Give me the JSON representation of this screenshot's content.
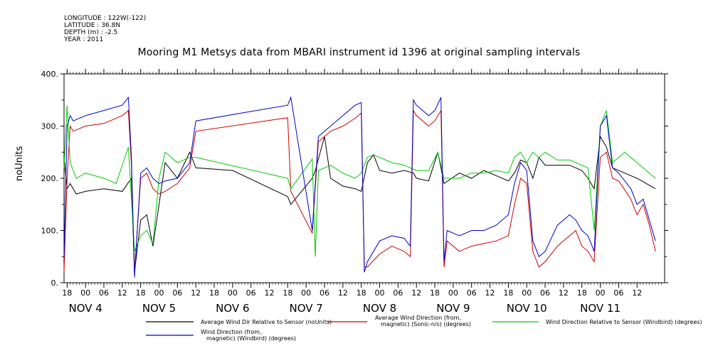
{
  "meta": {
    "longitude": "LONGITUDE : 122W(-122)",
    "latitude": "LATITUDE : 36.8N",
    "depth": "DEPTH (m) : -2.5",
    "year": "YEAR : 2011"
  },
  "chart_data": {
    "type": "line",
    "title": "Mooring M1 Metsys data from MBARI instrument id 1396 at original sampling intervals",
    "ylabel": "noUnits",
    "ylim": [
      0,
      400
    ],
    "yticks": [
      "0.",
      "100.",
      "200.",
      "300.",
      "400."
    ],
    "xlim_hours": [
      -7,
      189
    ],
    "hour_ticks": [
      {
        "h": -6,
        "label": "18"
      },
      {
        "h": 0,
        "label": "00"
      },
      {
        "h": 6,
        "label": "06"
      },
      {
        "h": 12,
        "label": "12"
      },
      {
        "h": 18,
        "label": "18"
      },
      {
        "h": 24,
        "label": "00"
      },
      {
        "h": 30,
        "label": "06"
      },
      {
        "h": 36,
        "label": "12"
      },
      {
        "h": 42,
        "label": "18"
      },
      {
        "h": 48,
        "label": "00"
      },
      {
        "h": 54,
        "label": "06"
      },
      {
        "h": 60,
        "label": "12"
      },
      {
        "h": 66,
        "label": "18"
      },
      {
        "h": 72,
        "label": "00"
      },
      {
        "h": 78,
        "label": "06"
      },
      {
        "h": 84,
        "label": "12"
      },
      {
        "h": 90,
        "label": "18"
      },
      {
        "h": 96,
        "label": "00"
      },
      {
        "h": 102,
        "label": "06"
      },
      {
        "h": 108,
        "label": "12"
      },
      {
        "h": 114,
        "label": "18"
      },
      {
        "h": 120,
        "label": "00"
      },
      {
        "h": 126,
        "label": "06"
      },
      {
        "h": 132,
        "label": "12"
      },
      {
        "h": 138,
        "label": "18"
      },
      {
        "h": 144,
        "label": "00"
      },
      {
        "h": 150,
        "label": "06"
      },
      {
        "h": 156,
        "label": "12"
      },
      {
        "h": 162,
        "label": "18"
      },
      {
        "h": 168,
        "label": "00"
      },
      {
        "h": 174,
        "label": "06"
      },
      {
        "h": 180,
        "label": "12"
      }
    ],
    "day_labels": [
      {
        "h": 0,
        "label": "NOV  4"
      },
      {
        "h": 24,
        "label": "NOV  5"
      },
      {
        "h": 48,
        "label": "NOV  6"
      },
      {
        "h": 72,
        "label": "NOV  7"
      },
      {
        "h": 96,
        "label": "NOV  8"
      },
      {
        "h": 120,
        "label": "NOV  9"
      },
      {
        "h": 144,
        "label": "NOV 10"
      },
      {
        "h": 168,
        "label": "NOV 11"
      }
    ],
    "series": [
      {
        "name": "Average Wind Dir Relative to Sensor (noUnits)",
        "color": "#000000",
        "points": [
          [
            -7,
            240
          ],
          [
            -6,
            180
          ],
          [
            -5,
            190
          ],
          [
            -3,
            170
          ],
          [
            0,
            175
          ],
          [
            6,
            180
          ],
          [
            12,
            175
          ],
          [
            15,
            200
          ],
          [
            16,
            20
          ],
          [
            18,
            120
          ],
          [
            20,
            130
          ],
          [
            22,
            70
          ],
          [
            24,
            150
          ],
          [
            26,
            230
          ],
          [
            30,
            200
          ],
          [
            34,
            250
          ],
          [
            36,
            220
          ],
          [
            48,
            215
          ],
          [
            66,
            165
          ],
          [
            67,
            150
          ],
          [
            74,
            200
          ],
          [
            75,
            215
          ],
          [
            78,
            280
          ],
          [
            80,
            200
          ],
          [
            84,
            185
          ],
          [
            88,
            180
          ],
          [
            90,
            175
          ],
          [
            92,
            230
          ],
          [
            94,
            245
          ],
          [
            96,
            215
          ],
          [
            100,
            210
          ],
          [
            104,
            215
          ],
          [
            107,
            210
          ],
          [
            108,
            200
          ],
          [
            112,
            195
          ],
          [
            115,
            250
          ],
          [
            117,
            190
          ],
          [
            122,
            210
          ],
          [
            126,
            200
          ],
          [
            130,
            215
          ],
          [
            134,
            205
          ],
          [
            138,
            195
          ],
          [
            140,
            210
          ],
          [
            142,
            235
          ],
          [
            144,
            230
          ],
          [
            146,
            200
          ],
          [
            148,
            240
          ],
          [
            150,
            225
          ],
          [
            154,
            225
          ],
          [
            158,
            225
          ],
          [
            162,
            215
          ],
          [
            164,
            200
          ],
          [
            166,
            180
          ],
          [
            168,
            280
          ],
          [
            170,
            260
          ],
          [
            172,
            220
          ],
          [
            176,
            210
          ],
          [
            180,
            200
          ],
          [
            186,
            180
          ]
        ]
      },
      {
        "name": "Average Wind Direction (from, magnetic) (Sonic-n/s) (degrees)",
        "color": "#cc0000",
        "points": [
          [
            -7,
            20
          ],
          [
            -6,
            200
          ],
          [
            -5,
            300
          ],
          [
            -4,
            290
          ],
          [
            0,
            300
          ],
          [
            6,
            305
          ],
          [
            12,
            320
          ],
          [
            14,
            330
          ],
          [
            15,
            225
          ],
          [
            16,
            20
          ],
          [
            18,
            200
          ],
          [
            20,
            210
          ],
          [
            22,
            180
          ],
          [
            24,
            170
          ],
          [
            26,
            175
          ],
          [
            30,
            190
          ],
          [
            34,
            220
          ],
          [
            36,
            290
          ],
          [
            66,
            316
          ],
          [
            67,
            175
          ],
          [
            74,
            95
          ],
          [
            76,
            270
          ],
          [
            80,
            290
          ],
          [
            84,
            300
          ],
          [
            88,
            315
          ],
          [
            90,
            325
          ],
          [
            91,
            30
          ],
          [
            92,
            30
          ],
          [
            96,
            55
          ],
          [
            100,
            70
          ],
          [
            104,
            60
          ],
          [
            106,
            50
          ],
          [
            107,
            330
          ],
          [
            108,
            320
          ],
          [
            112,
            300
          ],
          [
            114,
            310
          ],
          [
            116,
            330
          ],
          [
            117,
            30
          ],
          [
            118,
            80
          ],
          [
            122,
            60
          ],
          [
            126,
            70
          ],
          [
            130,
            75
          ],
          [
            134,
            80
          ],
          [
            138,
            90
          ],
          [
            140,
            150
          ],
          [
            142,
            200
          ],
          [
            144,
            190
          ],
          [
            146,
            60
          ],
          [
            148,
            30
          ],
          [
            150,
            40
          ],
          [
            154,
            70
          ],
          [
            158,
            90
          ],
          [
            160,
            100
          ],
          [
            162,
            70
          ],
          [
            164,
            60
          ],
          [
            166,
            40
          ],
          [
            168,
            240
          ],
          [
            170,
            250
          ],
          [
            172,
            200
          ],
          [
            174,
            195
          ],
          [
            178,
            160
          ],
          [
            180,
            130
          ],
          [
            182,
            150
          ],
          [
            184,
            110
          ],
          [
            186,
            60
          ]
        ]
      },
      {
        "name": "Wind Direction Relative to Sensor (Windbird) (degrees)",
        "color": "#00cc00",
        "points": [
          [
            -7,
            220
          ],
          [
            -6,
            340
          ],
          [
            -5,
            230
          ],
          [
            -3,
            200
          ],
          [
            0,
            210
          ],
          [
            6,
            200
          ],
          [
            10,
            190
          ],
          [
            14,
            260
          ],
          [
            16,
            60
          ],
          [
            18,
            90
          ],
          [
            20,
            100
          ],
          [
            22,
            75
          ],
          [
            24,
            200
          ],
          [
            26,
            250
          ],
          [
            30,
            230
          ],
          [
            34,
            240
          ],
          [
            36,
            240
          ],
          [
            66,
            200
          ],
          [
            67,
            180
          ],
          [
            74,
            237
          ],
          [
            75,
            50
          ],
          [
            76,
            215
          ],
          [
            80,
            225
          ],
          [
            84,
            210
          ],
          [
            88,
            200
          ],
          [
            90,
            210
          ],
          [
            92,
            240
          ],
          [
            94,
            245
          ],
          [
            96,
            240
          ],
          [
            100,
            230
          ],
          [
            104,
            225
          ],
          [
            108,
            215
          ],
          [
            112,
            215
          ],
          [
            115,
            250
          ],
          [
            117,
            200
          ],
          [
            122,
            200
          ],
          [
            126,
            210
          ],
          [
            130,
            210
          ],
          [
            134,
            215
          ],
          [
            138,
            210
          ],
          [
            140,
            240
          ],
          [
            142,
            250
          ],
          [
            144,
            230
          ],
          [
            146,
            250
          ],
          [
            148,
            240
          ],
          [
            150,
            250
          ],
          [
            154,
            235
          ],
          [
            158,
            235
          ],
          [
            162,
            225
          ],
          [
            164,
            220
          ],
          [
            166,
            100
          ],
          [
            168,
            300
          ],
          [
            170,
            330
          ],
          [
            172,
            230
          ],
          [
            176,
            250
          ],
          [
            180,
            230
          ],
          [
            184,
            210
          ],
          [
            186,
            200
          ]
        ]
      },
      {
        "name": "Wind Direction (from, magnetic) (Windbird) (degrees)",
        "color": "#0000cc",
        "points": [
          [
            -7,
            50
          ],
          [
            -6,
            300
          ],
          [
            -5,
            320
          ],
          [
            -4,
            310
          ],
          [
            0,
            320
          ],
          [
            6,
            330
          ],
          [
            12,
            340
          ],
          [
            14,
            355
          ],
          [
            15,
            240
          ],
          [
            16,
            10
          ],
          [
            18,
            210
          ],
          [
            20,
            220
          ],
          [
            22,
            200
          ],
          [
            24,
            190
          ],
          [
            26,
            195
          ],
          [
            30,
            200
          ],
          [
            34,
            230
          ],
          [
            36,
            310
          ],
          [
            66,
            340
          ],
          [
            67,
            355
          ],
          [
            74,
            100
          ],
          [
            76,
            280
          ],
          [
            80,
            300
          ],
          [
            84,
            320
          ],
          [
            88,
            340
          ],
          [
            90,
            345
          ],
          [
            91,
            20
          ],
          [
            92,
            40
          ],
          [
            96,
            80
          ],
          [
            100,
            90
          ],
          [
            104,
            85
          ],
          [
            106,
            70
          ],
          [
            107,
            350
          ],
          [
            108,
            340
          ],
          [
            112,
            320
          ],
          [
            114,
            330
          ],
          [
            116,
            355
          ],
          [
            117,
            40
          ],
          [
            118,
            100
          ],
          [
            122,
            90
          ],
          [
            126,
            100
          ],
          [
            130,
            100
          ],
          [
            134,
            110
          ],
          [
            138,
            130
          ],
          [
            140,
            190
          ],
          [
            142,
            230
          ],
          [
            144,
            215
          ],
          [
            146,
            80
          ],
          [
            148,
            50
          ],
          [
            150,
            60
          ],
          [
            154,
            110
          ],
          [
            158,
            130
          ],
          [
            160,
            120
          ],
          [
            162,
            100
          ],
          [
            164,
            90
          ],
          [
            166,
            60
          ],
          [
            168,
            300
          ],
          [
            170,
            320
          ],
          [
            172,
            220
          ],
          [
            174,
            210
          ],
          [
            178,
            180
          ],
          [
            180,
            150
          ],
          [
            182,
            160
          ],
          [
            184,
            120
          ],
          [
            186,
            80
          ]
        ]
      }
    ]
  }
}
